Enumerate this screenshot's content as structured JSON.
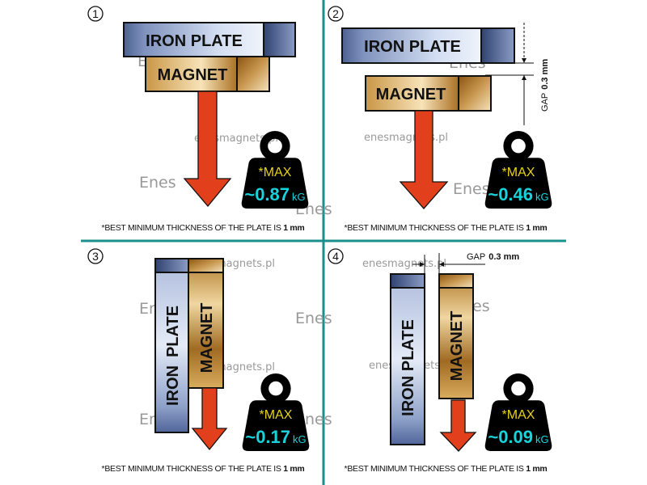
{
  "colors": {
    "divider": "#1a8f8c",
    "arrow": "#e2401c",
    "weight": "#000000",
    "max_text": "#e8d21a",
    "value_text": "#19d3dc"
  },
  "watermark": {
    "text": "enesmagnets.pl",
    "logo_text": "Enes"
  },
  "labels": {
    "iron_plate": "IRON PLATE",
    "iron": "IRON",
    "plate": "PLATE",
    "magnet": "MAGNET",
    "max": "*MAX",
    "unit": "kG"
  },
  "footnote": {
    "text": "*BEST MINIMUM THICKNESS OF THE PLATE IS ",
    "value": "1 mm"
  },
  "gap": {
    "label": "GAP",
    "value": "0.3 mm"
  },
  "panels": [
    {
      "number": "1",
      "value": "~0.87"
    },
    {
      "number": "2",
      "value": "~0.46"
    },
    {
      "number": "3",
      "value": "~0.17"
    },
    {
      "number": "4",
      "value": "~0.09"
    }
  ]
}
